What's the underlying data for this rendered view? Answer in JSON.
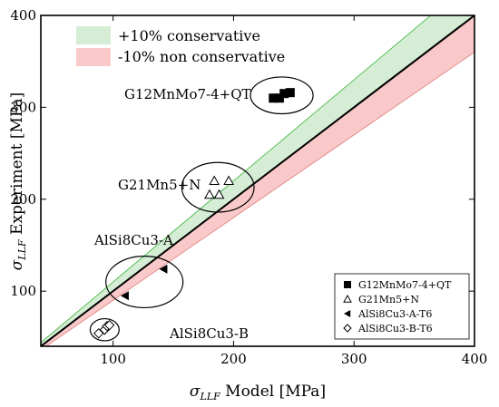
{
  "chart_data": {
    "type": "scatter",
    "xlabel": {
      "main": "σ",
      "sub": "LLF",
      "rest": " Model [MPa]"
    },
    "ylabel": {
      "main": "σ",
      "sub": "LLF",
      "rest": " Experiment [MPa]"
    },
    "xlim": [
      40,
      400
    ],
    "ylim": [
      40,
      400
    ],
    "xticks": [
      100,
      200,
      300,
      400
    ],
    "yticks": [
      100,
      200,
      300,
      400
    ],
    "reference_line": {
      "slope": 1
    },
    "bands": [
      {
        "label": "+10% conservative",
        "factor": 1.1,
        "color": "#d4edd4",
        "edge": "#39b339"
      },
      {
        "label": "-10% non conservative",
        "factor": 0.9,
        "color": "#f9c9c9",
        "edge": "#e07a7a"
      }
    ],
    "series": [
      {
        "name": "G12MnMo7-4+QT",
        "marker": "square",
        "points": [
          [
            233,
            310
          ],
          [
            238,
            310
          ],
          [
            242,
            315
          ],
          [
            247,
            316
          ]
        ]
      },
      {
        "name": "G21Mn5+N",
        "marker": "triangle-up",
        "points": [
          [
            180,
            205
          ],
          [
            184,
            220
          ],
          [
            188,
            205
          ],
          [
            196,
            220
          ]
        ]
      },
      {
        "name": "AlSi8Cu3-A-T6",
        "marker": "triangle-left",
        "points": [
          [
            110,
            95
          ],
          [
            142,
            124
          ]
        ]
      },
      {
        "name": "AlSi8Cu3-B-T6",
        "marker": "diamond",
        "points": [
          [
            88,
            54
          ],
          [
            93,
            58
          ],
          [
            95,
            62
          ],
          [
            97,
            63
          ]
        ]
      }
    ],
    "group_annotations": [
      {
        "text": "G12MnMo7-4+QT",
        "ellipse": {
          "cx": 240,
          "cy": 313,
          "rx": 26,
          "ry": 20
        }
      },
      {
        "text": "G21Mn5+N",
        "ellipse": {
          "cx": 187,
          "cy": 213,
          "rx": 30,
          "ry": 27
        }
      },
      {
        "text": "AlSi8Cu3-A",
        "ellipse": {
          "cx": 126,
          "cy": 110,
          "rx": 32,
          "ry": 28
        }
      },
      {
        "text": "AlSi8Cu3-B",
        "ellipse": {
          "cx": 93,
          "cy": 58,
          "rx": 12,
          "ry": 12
        }
      }
    ]
  }
}
